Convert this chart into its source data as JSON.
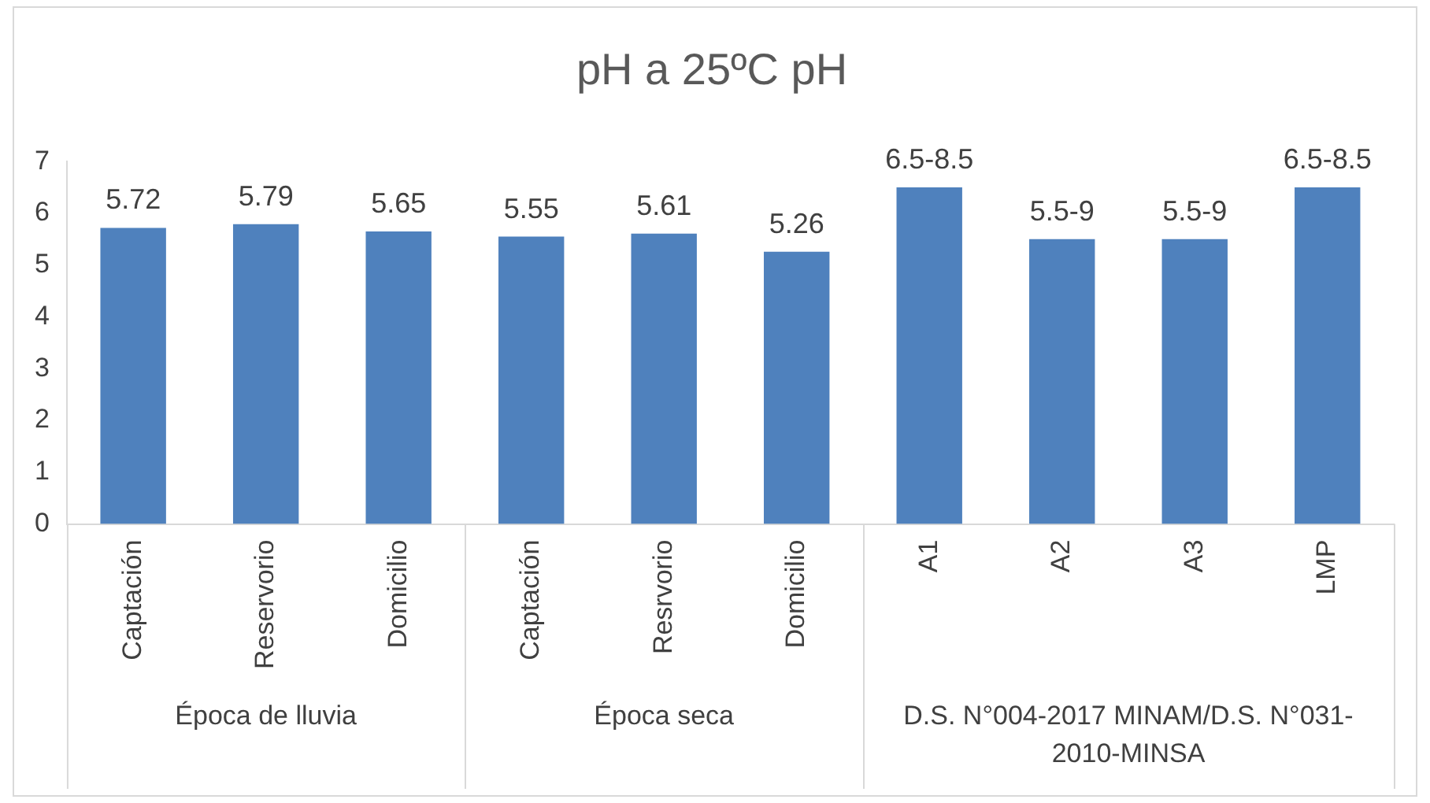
{
  "chart_data": {
    "type": "bar",
    "title": "pH a 25ºC pH",
    "categories": [
      "Captación",
      "Reservorio",
      "Domicilio",
      "Captación",
      "Resrvorio",
      "Domicilio",
      "A1",
      "A2",
      "A3",
      "LMP"
    ],
    "values": [
      5.72,
      5.79,
      5.65,
      5.55,
      5.61,
      5.26,
      6.5,
      5.5,
      5.5,
      6.5
    ],
    "value_labels": [
      "5.72",
      "5.79",
      "5.65",
      "5.55",
      "5.61",
      "5.26",
      "6.5-8.5",
      "5.5-9",
      "5.5-9",
      "6.5-8.5"
    ],
    "color": "#4f81bd",
    "ylim": [
      0,
      7
    ],
    "yticks": [
      0,
      1,
      2,
      3,
      4,
      5,
      6,
      7
    ],
    "grid": false,
    "legend": false,
    "annotations": [
      "Época de lluvia",
      "Época seca",
      "D.S. N°004-2017 MINAM/D.S. N°031- 2010-MINSA"
    ]
  }
}
